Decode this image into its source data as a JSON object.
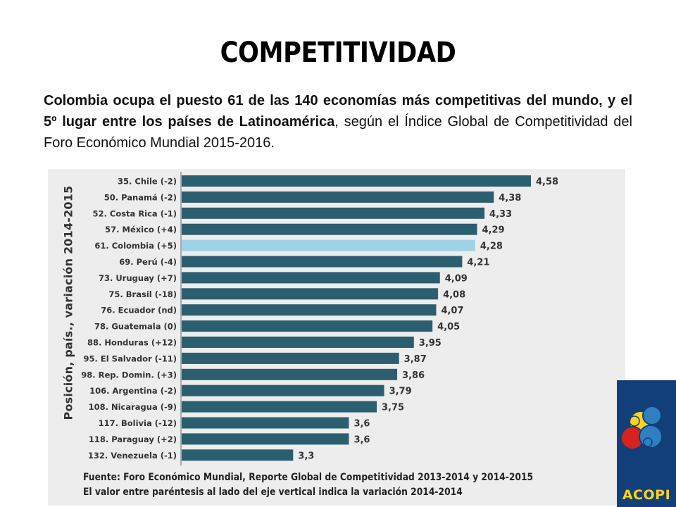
{
  "slide": {
    "title": "COMPETITIVIDAD",
    "intro_bold": "Colombia ocupa el puesto 61 de las 140 economías más competitivas del mundo, y el 5º lugar entre los países de Latinoamérica",
    "intro_rest": ", según el Índice Global de Competitividad del Foro Económico Mundial 2015-2016."
  },
  "chart_data": {
    "type": "bar",
    "orientation": "horizontal",
    "ylabel": "Posición, país., variación 2014-2015",
    "categories": [
      "35. Chile (-2)",
      "50. Panamá (-2)",
      "52. Costa Rica (-1)",
      "57. México (+4)",
      "61. Colombia (+5)",
      "69. Perú (-4)",
      "73. Uruguay (+7)",
      "75. Brasil (-18)",
      "76. Ecuador (nd)",
      "78. Guatemala (0)",
      "88. Honduras (+12)",
      "95. El Salvador (-11)",
      "98. Rep. Domin. (+3)",
      "106. Argentina (-2)",
      "108. Nicaragua (-9)",
      "117. Bolivia (-12)",
      "118. Paraguay (+2)",
      "132. Venezuela (-1)"
    ],
    "values": [
      4.58,
      4.38,
      4.33,
      4.29,
      4.28,
      4.21,
      4.09,
      4.08,
      4.07,
      4.05,
      3.95,
      3.87,
      3.86,
      3.79,
      3.75,
      3.6,
      3.6,
      3.3
    ],
    "value_labels": [
      "4,58",
      "4,38",
      "4,33",
      "4,29",
      "4,28",
      "4,21",
      "4,09",
      "4,08",
      "4,07",
      "4,05",
      "3,95",
      "3,87",
      "3,86",
      "3,79",
      "3,75",
      "3,6",
      "3,6",
      "3,3"
    ],
    "highlight_index": 4,
    "xlim": [
      2.7,
      4.58
    ],
    "grid": false,
    "colors": {
      "bar": "#2b5f70",
      "highlight": "#9ed3e6",
      "background": "#ededed",
      "label": "#333333"
    },
    "source_lines": [
      "Fuente: Foro Económico Mundial, Reporte Global de Competitividad 2013-2014 y 2014-2015",
      "El valor entre paréntesis al lado del eje vertical indica la variación 2014-2014"
    ]
  },
  "logo": {
    "label": "ACOPI",
    "colors": [
      "#ffd21f",
      "#d6231f",
      "#2f7fc1"
    ]
  }
}
